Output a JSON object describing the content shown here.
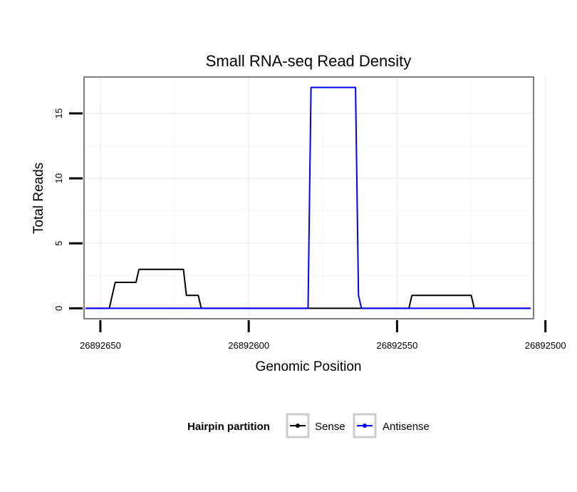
{
  "chart_data": {
    "type": "line",
    "title": "Small RNA-seq Read Density",
    "xlabel": "Genomic Position",
    "ylabel": "Total Reads",
    "xlim": [
      26892655.5,
      26892504
    ],
    "ylim": [
      -0.8,
      17.8
    ],
    "x_reversed": true,
    "grid": true,
    "xticks": [
      26892650,
      26892600,
      26892550,
      26892500
    ],
    "xtick_labels": [
      "26892650",
      "26892600",
      "26892550",
      "26892500"
    ],
    "yticks": [
      0,
      5,
      10,
      15
    ],
    "ytick_labels": [
      "0",
      "5",
      "10",
      "15"
    ],
    "legend": {
      "title": "Hairpin partition",
      "position": "bottom",
      "entries": [
        "Sense",
        "Antisense"
      ]
    },
    "series": [
      {
        "name": "Sense",
        "color": "#000000",
        "x": [
          26892655,
          26892647,
          26892645,
          26892638,
          26892637,
          26892622,
          26892621,
          26892617,
          26892616,
          26892566,
          26892565,
          26892554,
          26892553,
          26892546,
          26892545,
          26892525,
          26892524,
          26892518,
          26892517,
          26892505
        ],
        "y": [
          0,
          0,
          2,
          2,
          3,
          3,
          1,
          1,
          0,
          0,
          0,
          0,
          0,
          0,
          1,
          1,
          0,
          0,
          0,
          0
        ]
      },
      {
        "name": "Antisense",
        "color": "#0000ff",
        "x": [
          26892655,
          26892580,
          26892579,
          26892564,
          26892563,
          26892562,
          26892505
        ],
        "y": [
          0,
          0,
          17,
          17,
          1,
          0,
          0
        ]
      }
    ]
  }
}
